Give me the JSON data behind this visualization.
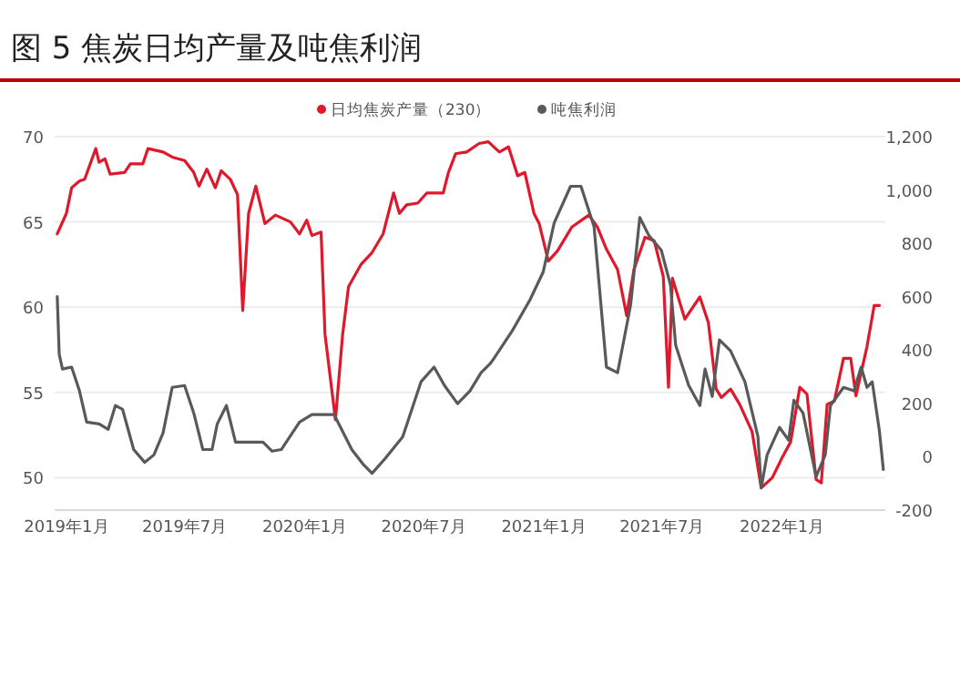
{
  "chart_data": {
    "type": "line",
    "title": "图 5  焦炭日均产量及吨焦利润",
    "xlim": [
      "2018-12-14",
      "2022-06-08"
    ],
    "xticks": [
      {
        "value": "2019-01",
        "label": "2019年1月"
      },
      {
        "value": "2019-07",
        "label": "2019年7月"
      },
      {
        "value": "2020-01",
        "label": "2020年1月"
      },
      {
        "value": "2020-07",
        "label": "2020年7月"
      },
      {
        "value": "2021-01",
        "label": "2021年1月"
      },
      {
        "value": "2021-07",
        "label": "2021年7月"
      },
      {
        "value": "2022-01",
        "label": "2022年1月"
      }
    ],
    "ylim": [
      48.1,
      70
    ],
    "yticks": [
      50,
      55,
      60,
      65,
      70
    ],
    "y2lim": [
      -200,
      1200
    ],
    "y2ticks": [
      {
        "value": -200,
        "label": "-200"
      },
      {
        "value": 0,
        "label": "0"
      },
      {
        "value": 200,
        "label": "200"
      },
      {
        "value": 400,
        "label": "400"
      },
      {
        "value": 600,
        "label": "600"
      },
      {
        "value": 800,
        "label": "800"
      },
      {
        "value": 1000,
        "label": "1,000"
      },
      {
        "value": 1200,
        "label": "1,200"
      }
    ],
    "grid": "y",
    "legend": "top",
    "marker": "none",
    "line_style": "solid",
    "series": [
      {
        "name": "日均焦炭产量（230）",
        "color": "#e0182b",
        "x": [
          "2018-12-18",
          "2019-01-01",
          "2019-01-09",
          "2019-01-21",
          "2019-01-29",
          "2019-02-15",
          "2019-02-20",
          "2019-03-01",
          "2019-03-09",
          "2019-03-31",
          "2019-04-09",
          "2019-04-28",
          "2019-05-06",
          "2019-05-29",
          "2019-06-12",
          "2019-07-01",
          "2019-07-15",
          "2019-07-23",
          "2019-08-04",
          "2019-08-17",
          "2019-08-26",
          "2019-09-09",
          "2019-09-20",
          "2019-09-28",
          "2019-10-07",
          "2019-10-18",
          "2019-11-01",
          "2019-11-17",
          "2019-12-10",
          "2019-12-24",
          "2020-01-04",
          "2020-01-12",
          "2020-01-26",
          "2020-02-01",
          "2020-02-17",
          "2020-02-28",
          "2020-03-08",
          "2020-03-27",
          "2020-04-13",
          "2020-04-30",
          "2020-05-16",
          "2020-05-25",
          "2020-06-05",
          "2020-06-22",
          "2020-07-06",
          "2020-07-31",
          "2020-08-08",
          "2020-08-19",
          "2020-09-05",
          "2020-09-24",
          "2020-10-08",
          "2020-10-25",
          "2020-11-08",
          "2020-11-22",
          "2020-12-03",
          "2020-12-17",
          "2020-12-25",
          "2021-01-08",
          "2021-01-22",
          "2021-02-13",
          "2021-03-11",
          "2021-03-24",
          "2021-04-07",
          "2021-04-24",
          "2021-05-08",
          "2021-05-19",
          "2021-06-05",
          "2021-06-19",
          "2021-07-03",
          "2021-07-11",
          "2021-07-17",
          "2021-08-05",
          "2021-08-28",
          "2021-09-10",
          "2021-09-22",
          "2021-09-30",
          "2021-10-14",
          "2021-10-28",
          "2021-11-16",
          "2021-11-30",
          "2021-12-17",
          "2021-12-31",
          "2022-01-14",
          "2022-01-28",
          "2022-02-08",
          "2022-02-22",
          "2022-03-02",
          "2022-03-11",
          "2022-03-22",
          "2022-04-05",
          "2022-04-16",
          "2022-04-24",
          "2022-05-11",
          "2022-05-22",
          "2022-05-30"
        ],
        "values": [
          64.3,
          65.5,
          67.0,
          67.4,
          67.5,
          69.3,
          68.5,
          68.7,
          67.8,
          67.9,
          68.4,
          68.4,
          69.3,
          69.1,
          68.8,
          68.6,
          67.9,
          67.1,
          68.1,
          67.0,
          68.0,
          67.5,
          66.6,
          59.8,
          65.5,
          67.1,
          64.9,
          65.4,
          65.0,
          64.3,
          65.1,
          64.2,
          64.4,
          58.4,
          53.4,
          58.4,
          61.2,
          62.5,
          63.2,
          64.3,
          66.7,
          65.5,
          66.0,
          66.1,
          66.7,
          66.7,
          67.9,
          69.0,
          69.1,
          69.6,
          69.7,
          69.1,
          69.4,
          67.7,
          67.9,
          65.5,
          64.9,
          62.7,
          63.3,
          64.7,
          65.4,
          64.7,
          63.4,
          62.2,
          59.5,
          62.2,
          64.1,
          63.9,
          61.8,
          55.3,
          61.7,
          59.3,
          60.6,
          59.1,
          55.2,
          54.7,
          55.2,
          54.3,
          52.7,
          49.4,
          50.0,
          51.1,
          52.1,
          55.3,
          54.9,
          49.9,
          49.7,
          54.3,
          54.5,
          57.0,
          57.0,
          54.8,
          57.7,
          60.1,
          60.1
        ]
      },
      {
        "name": "吨焦利润",
        "color": "#595959",
        "axis": "y2",
        "x": [
          "2018-12-18",
          "2018-12-21",
          "2018-12-26",
          "2019-01-09",
          "2019-01-21",
          "2019-02-01",
          "2019-02-20",
          "2019-03-06",
          "2019-03-17",
          "2019-03-28",
          "2019-04-14",
          "2019-05-01",
          "2019-05-15",
          "2019-05-29",
          "2019-06-12",
          "2019-07-01",
          "2019-07-15",
          "2019-07-29",
          "2019-08-12",
          "2019-08-20",
          "2019-09-03",
          "2019-09-17",
          "2019-10-07",
          "2019-10-29",
          "2019-11-12",
          "2019-11-26",
          "2019-12-24",
          "2020-01-12",
          "2020-02-15",
          "2020-03-13",
          "2020-03-30",
          "2020-04-13",
          "2020-05-03",
          "2020-05-30",
          "2020-06-27",
          "2020-07-17",
          "2020-08-02",
          "2020-08-22",
          "2020-09-10",
          "2020-09-27",
          "2020-10-11",
          "2020-10-17",
          "2020-11-14",
          "2020-12-11",
          "2020-12-31",
          "2021-01-17",
          "2021-02-11",
          "2021-02-27",
          "2021-03-19",
          "2021-04-07",
          "2021-04-24",
          "2021-05-14",
          "2021-05-28",
          "2021-06-11",
          "2021-06-30",
          "2021-07-14",
          "2021-07-22",
          "2021-08-11",
          "2021-08-28",
          "2021-09-05",
          "2021-09-16",
          "2021-09-27",
          "2021-10-14",
          "2021-11-05",
          "2021-11-25",
          "2021-11-30",
          "2021-12-09",
          "2021-12-28",
          "2022-01-11",
          "2022-01-19",
          "2022-02-02",
          "2022-02-22",
          "2022-03-08",
          "2022-03-16",
          "2022-04-05",
          "2022-04-21",
          "2022-05-02",
          "2022-05-11",
          "2022-05-19",
          "2022-05-30",
          "2022-06-05"
        ],
        "values": [
          600,
          384,
          329,
          336,
          247,
          130,
          123,
          103,
          192,
          178,
          27,
          -21,
          7,
          89,
          260,
          267,
          164,
          27,
          27,
          123,
          192,
          55,
          55,
          55,
          21,
          27,
          130,
          158,
          158,
          27,
          -27,
          -62,
          -7,
          75,
          281,
          336,
          267,
          199,
          247,
          315,
          349,
          370,
          473,
          589,
          692,
          877,
          1014,
          1014,
          863,
          336,
          315,
          569,
          897,
          829,
          774,
          644,
          418,
          267,
          192,
          329,
          226,
          438,
          397,
          281,
          75,
          -116,
          7,
          110,
          62,
          212,
          164,
          -75,
          7,
          192,
          260,
          247,
          336,
          260,
          281,
          96,
          -48
        ]
      }
    ]
  }
}
